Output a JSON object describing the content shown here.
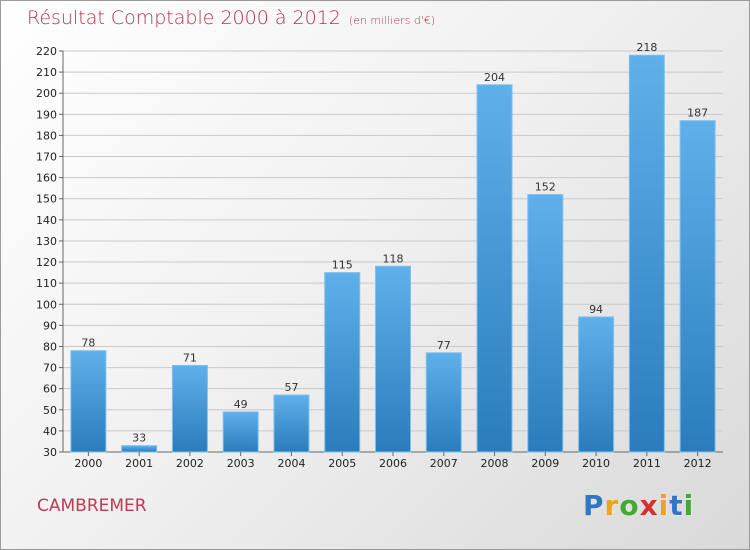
{
  "header": {
    "title": "Résultat Comptable 2000 à 2012",
    "subtitle": "(en milliers d'€)"
  },
  "footer": {
    "city": "CAMBREMER",
    "logo_letters": [
      "P",
      "r",
      "o",
      "x",
      "i",
      "t",
      "i"
    ],
    "logo_colors": [
      "#2f77c6",
      "#f0a21b",
      "#45a832",
      "#d6312f",
      "#f0a21b",
      "#2f77c6",
      "#45a832"
    ]
  },
  "colors": {
    "bar_light": "#5fb0ea",
    "bar_dark": "#2a7cbc",
    "grid": "#c9c9c9",
    "axis": "#666666"
  },
  "chart_data": {
    "type": "bar",
    "title": "Résultat Comptable 2000 à 2012",
    "xlabel": "",
    "ylabel": "",
    "categories": [
      "2000",
      "2001",
      "2002",
      "2003",
      "2004",
      "2005",
      "2006",
      "2007",
      "2008",
      "2009",
      "2010",
      "2011",
      "2012"
    ],
    "values": [
      78,
      33,
      71,
      49,
      57,
      115,
      118,
      77,
      204,
      152,
      94,
      218,
      187
    ],
    "ylim": [
      30,
      220
    ],
    "yticks": [
      30,
      40,
      50,
      60,
      70,
      80,
      90,
      100,
      110,
      120,
      130,
      140,
      150,
      160,
      170,
      180,
      190,
      200,
      210,
      220
    ],
    "grid": true
  }
}
